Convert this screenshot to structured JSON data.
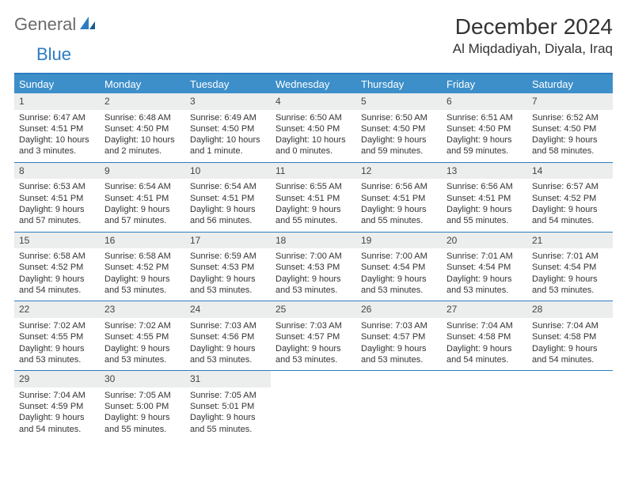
{
  "logo": {
    "general": "General",
    "blue": "Blue"
  },
  "title": "December 2024",
  "location": "Al Miqdadiyah, Diyala, Iraq",
  "colors": {
    "header_bg": "#3d8fc9",
    "border": "#2d7cc1",
    "daynum_bg": "#eceded",
    "logo_gray": "#6b6b6b",
    "logo_blue": "#2d7cc1",
    "text": "#333333",
    "background": "#ffffff"
  },
  "dow": [
    "Sunday",
    "Monday",
    "Tuesday",
    "Wednesday",
    "Thursday",
    "Friday",
    "Saturday"
  ],
  "weeks": [
    [
      {
        "n": "1",
        "sr": "Sunrise: 6:47 AM",
        "ss": "Sunset: 4:51 PM",
        "dl": "Daylight: 10 hours and 3 minutes."
      },
      {
        "n": "2",
        "sr": "Sunrise: 6:48 AM",
        "ss": "Sunset: 4:50 PM",
        "dl": "Daylight: 10 hours and 2 minutes."
      },
      {
        "n": "3",
        "sr": "Sunrise: 6:49 AM",
        "ss": "Sunset: 4:50 PM",
        "dl": "Daylight: 10 hours and 1 minute."
      },
      {
        "n": "4",
        "sr": "Sunrise: 6:50 AM",
        "ss": "Sunset: 4:50 PM",
        "dl": "Daylight: 10 hours and 0 minutes."
      },
      {
        "n": "5",
        "sr": "Sunrise: 6:50 AM",
        "ss": "Sunset: 4:50 PM",
        "dl": "Daylight: 9 hours and 59 minutes."
      },
      {
        "n": "6",
        "sr": "Sunrise: 6:51 AM",
        "ss": "Sunset: 4:50 PM",
        "dl": "Daylight: 9 hours and 59 minutes."
      },
      {
        "n": "7",
        "sr": "Sunrise: 6:52 AM",
        "ss": "Sunset: 4:50 PM",
        "dl": "Daylight: 9 hours and 58 minutes."
      }
    ],
    [
      {
        "n": "8",
        "sr": "Sunrise: 6:53 AM",
        "ss": "Sunset: 4:51 PM",
        "dl": "Daylight: 9 hours and 57 minutes."
      },
      {
        "n": "9",
        "sr": "Sunrise: 6:54 AM",
        "ss": "Sunset: 4:51 PM",
        "dl": "Daylight: 9 hours and 57 minutes."
      },
      {
        "n": "10",
        "sr": "Sunrise: 6:54 AM",
        "ss": "Sunset: 4:51 PM",
        "dl": "Daylight: 9 hours and 56 minutes."
      },
      {
        "n": "11",
        "sr": "Sunrise: 6:55 AM",
        "ss": "Sunset: 4:51 PM",
        "dl": "Daylight: 9 hours and 55 minutes."
      },
      {
        "n": "12",
        "sr": "Sunrise: 6:56 AM",
        "ss": "Sunset: 4:51 PM",
        "dl": "Daylight: 9 hours and 55 minutes."
      },
      {
        "n": "13",
        "sr": "Sunrise: 6:56 AM",
        "ss": "Sunset: 4:51 PM",
        "dl": "Daylight: 9 hours and 55 minutes."
      },
      {
        "n": "14",
        "sr": "Sunrise: 6:57 AM",
        "ss": "Sunset: 4:52 PM",
        "dl": "Daylight: 9 hours and 54 minutes."
      }
    ],
    [
      {
        "n": "15",
        "sr": "Sunrise: 6:58 AM",
        "ss": "Sunset: 4:52 PM",
        "dl": "Daylight: 9 hours and 54 minutes."
      },
      {
        "n": "16",
        "sr": "Sunrise: 6:58 AM",
        "ss": "Sunset: 4:52 PM",
        "dl": "Daylight: 9 hours and 53 minutes."
      },
      {
        "n": "17",
        "sr": "Sunrise: 6:59 AM",
        "ss": "Sunset: 4:53 PM",
        "dl": "Daylight: 9 hours and 53 minutes."
      },
      {
        "n": "18",
        "sr": "Sunrise: 7:00 AM",
        "ss": "Sunset: 4:53 PM",
        "dl": "Daylight: 9 hours and 53 minutes."
      },
      {
        "n": "19",
        "sr": "Sunrise: 7:00 AM",
        "ss": "Sunset: 4:54 PM",
        "dl": "Daylight: 9 hours and 53 minutes."
      },
      {
        "n": "20",
        "sr": "Sunrise: 7:01 AM",
        "ss": "Sunset: 4:54 PM",
        "dl": "Daylight: 9 hours and 53 minutes."
      },
      {
        "n": "21",
        "sr": "Sunrise: 7:01 AM",
        "ss": "Sunset: 4:54 PM",
        "dl": "Daylight: 9 hours and 53 minutes."
      }
    ],
    [
      {
        "n": "22",
        "sr": "Sunrise: 7:02 AM",
        "ss": "Sunset: 4:55 PM",
        "dl": "Daylight: 9 hours and 53 minutes."
      },
      {
        "n": "23",
        "sr": "Sunrise: 7:02 AM",
        "ss": "Sunset: 4:55 PM",
        "dl": "Daylight: 9 hours and 53 minutes."
      },
      {
        "n": "24",
        "sr": "Sunrise: 7:03 AM",
        "ss": "Sunset: 4:56 PM",
        "dl": "Daylight: 9 hours and 53 minutes."
      },
      {
        "n": "25",
        "sr": "Sunrise: 7:03 AM",
        "ss": "Sunset: 4:57 PM",
        "dl": "Daylight: 9 hours and 53 minutes."
      },
      {
        "n": "26",
        "sr": "Sunrise: 7:03 AM",
        "ss": "Sunset: 4:57 PM",
        "dl": "Daylight: 9 hours and 53 minutes."
      },
      {
        "n": "27",
        "sr": "Sunrise: 7:04 AM",
        "ss": "Sunset: 4:58 PM",
        "dl": "Daylight: 9 hours and 54 minutes."
      },
      {
        "n": "28",
        "sr": "Sunrise: 7:04 AM",
        "ss": "Sunset: 4:58 PM",
        "dl": "Daylight: 9 hours and 54 minutes."
      }
    ],
    [
      {
        "n": "29",
        "sr": "Sunrise: 7:04 AM",
        "ss": "Sunset: 4:59 PM",
        "dl": "Daylight: 9 hours and 54 minutes."
      },
      {
        "n": "30",
        "sr": "Sunrise: 7:05 AM",
        "ss": "Sunset: 5:00 PM",
        "dl": "Daylight: 9 hours and 55 minutes."
      },
      {
        "n": "31",
        "sr": "Sunrise: 7:05 AM",
        "ss": "Sunset: 5:01 PM",
        "dl": "Daylight: 9 hours and 55 minutes."
      },
      {
        "empty": true
      },
      {
        "empty": true
      },
      {
        "empty": true
      },
      {
        "empty": true
      }
    ]
  ]
}
